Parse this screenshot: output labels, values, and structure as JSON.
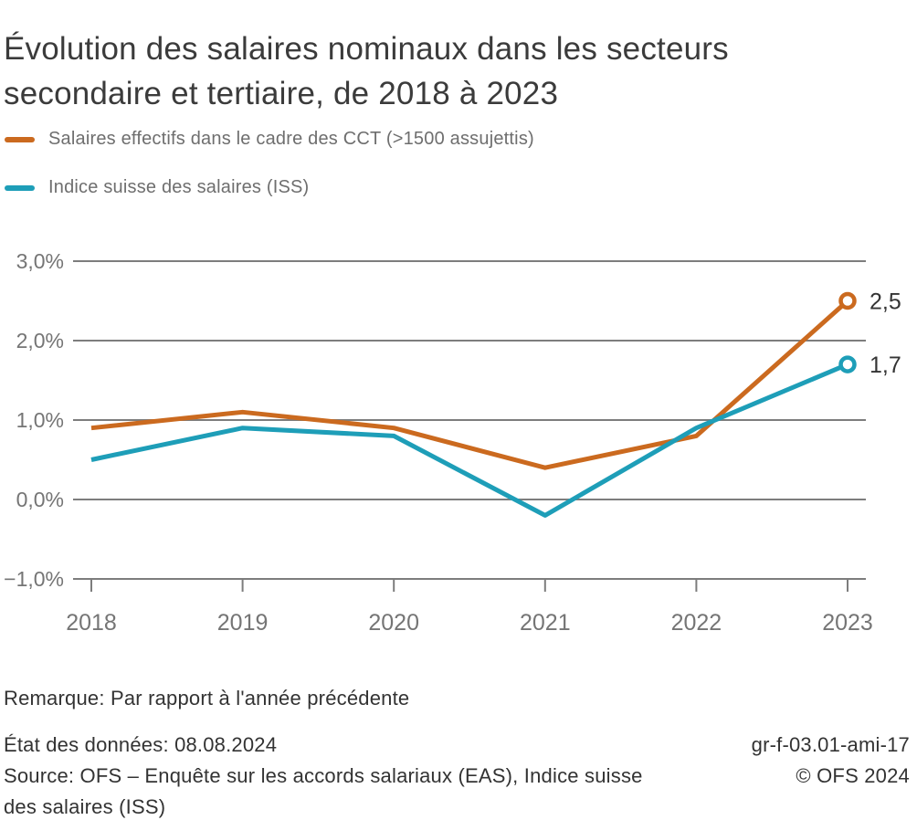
{
  "title": "Évolution des salaires nominaux dans les secteurs secondaire et tertiaire, de 2018 à 2023",
  "legend": [
    {
      "label": "Salaires effectifs dans le cadre des CCT (>1500 assujettis)",
      "color": "#cb6a1f"
    },
    {
      "label": "Indice suisse des salaires (ISS)",
      "color": "#1e9eb8"
    }
  ],
  "chart_data": {
    "type": "line",
    "x": [
      "2018",
      "2019",
      "2020",
      "2021",
      "2022",
      "2023"
    ],
    "series": [
      {
        "name": "Salaires effectifs dans le cadre des CCT (>1500 assujettis)",
        "color": "#cb6a1f",
        "values": [
          0.9,
          1.1,
          0.9,
          0.4,
          0.8,
          2.5
        ],
        "end_label": "2,5"
      },
      {
        "name": "Indice suisse des salaires (ISS)",
        "color": "#1e9eb8",
        "values": [
          0.5,
          0.9,
          0.8,
          -0.2,
          0.9,
          1.7
        ],
        "end_label": "1,7"
      }
    ],
    "ylim": [
      -1.0,
      3.0
    ],
    "yticks": [
      {
        "value": 3.0,
        "label": "3,0%"
      },
      {
        "value": 2.0,
        "label": "2,0%"
      },
      {
        "value": 1.0,
        "label": "1,0%"
      },
      {
        "value": 0.0,
        "label": "0,0%"
      },
      {
        "value": -1.0,
        "label": "−1,0%"
      }
    ],
    "grid": true,
    "legend_position": "top",
    "marker_last_point": "open-circle"
  },
  "remark": "Remarque: Par rapport à l'année précédente",
  "footer": {
    "data_state": "État des données: 08.08.2024",
    "source": "Source: OFS – Enquête sur les accords salariaux (EAS), Indice suisse des salaires (ISS)",
    "code": "gr-f-03.01-ami-17",
    "copyright": "© OFS 2024"
  },
  "colors": {
    "title_text": "#3b3b3b",
    "legend_text": "#6e6e6e",
    "gridline": "#7d7d7d",
    "axis_text": "#757575",
    "value_label_text": "#343434",
    "footer_text": "#333333",
    "background": "#ffffff"
  }
}
